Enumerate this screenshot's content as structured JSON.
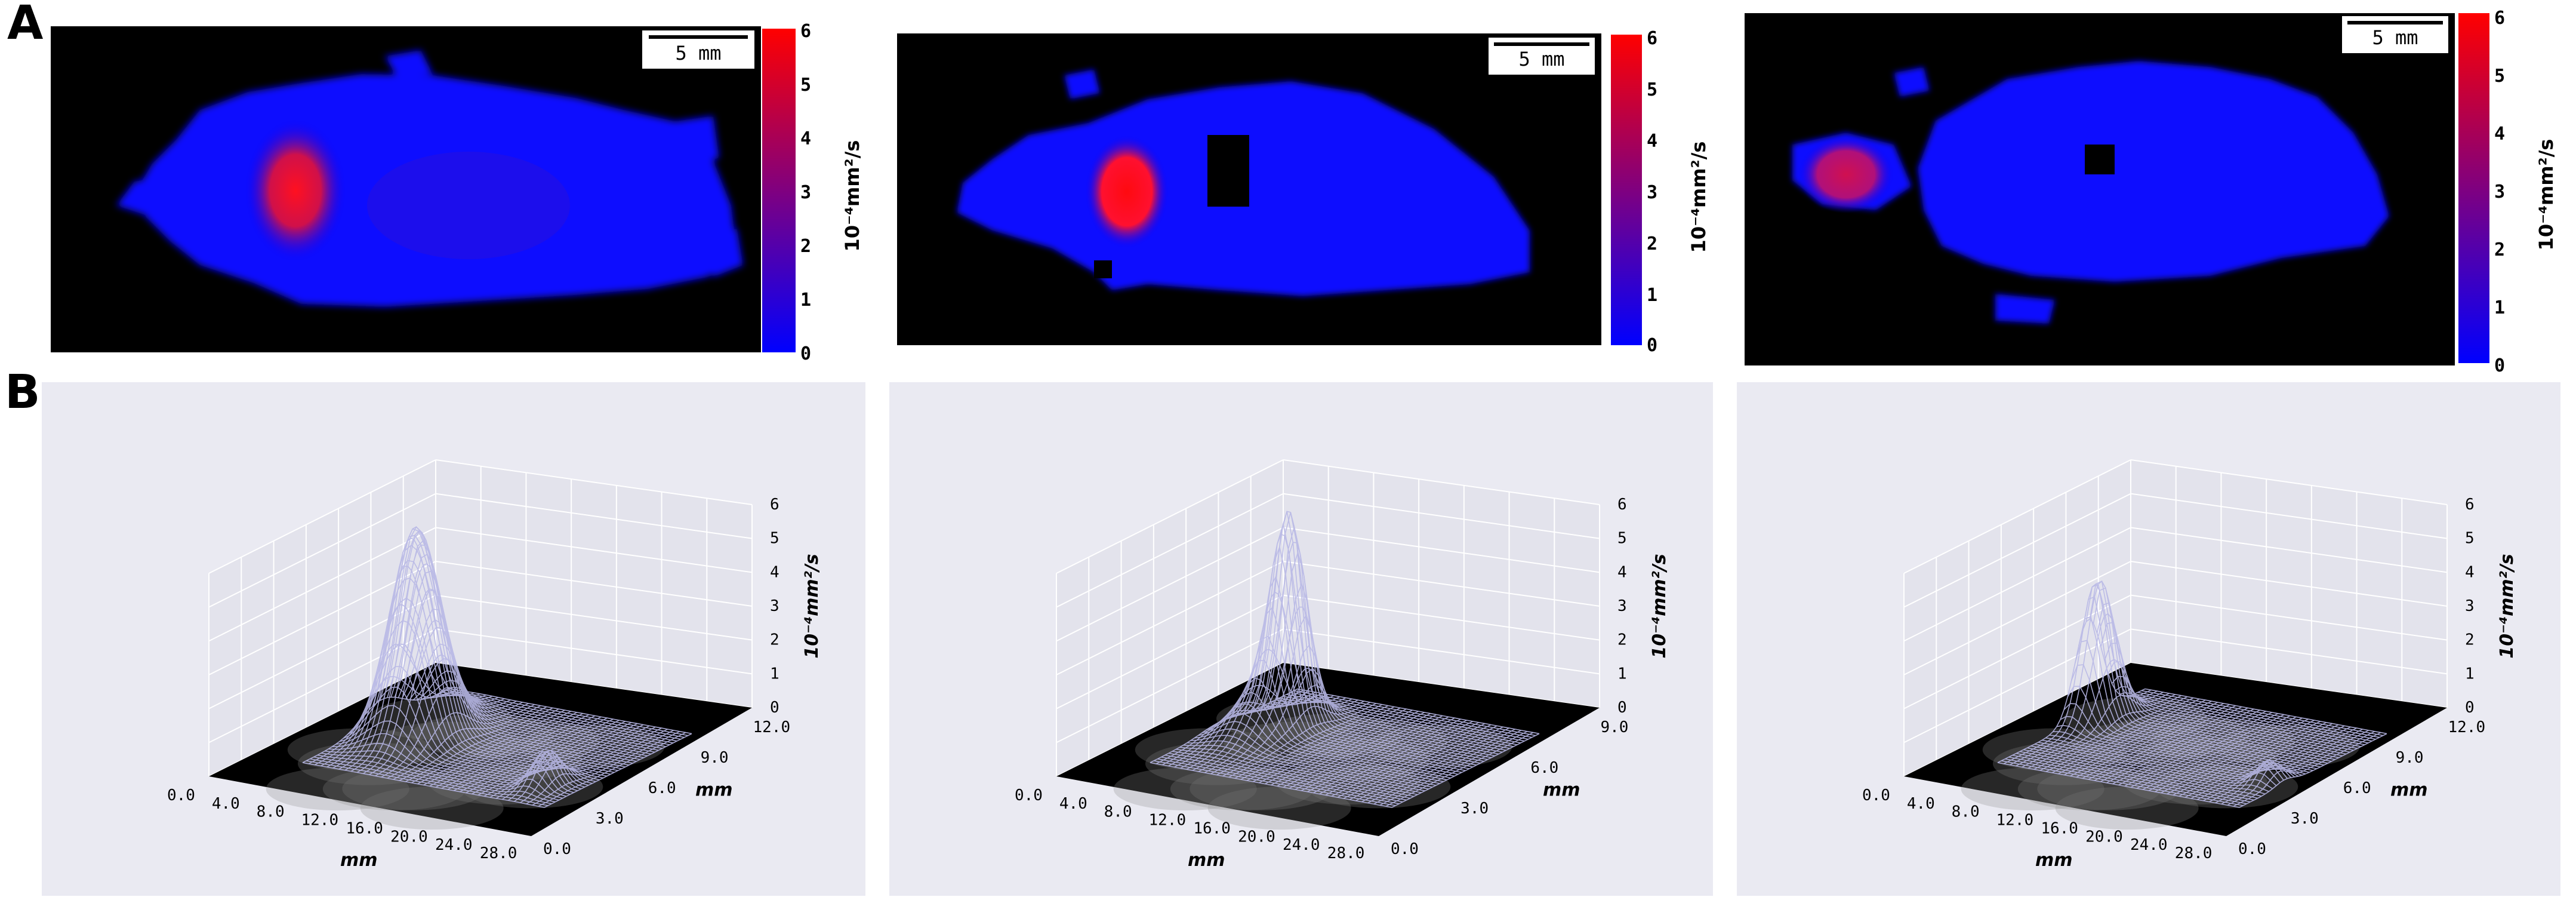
{
  "figure": {
    "panel_a_label": "A",
    "panel_b_label": "B"
  },
  "panel_a": {
    "scalebar_label": "5 mm",
    "colorbar_label": "10⁻⁴mm²/s",
    "colorbar_ticks": [
      "0",
      "1",
      "2",
      "3",
      "4",
      "5",
      "6"
    ],
    "colors": {
      "low": "#0000ff",
      "high": "#ff0000",
      "background": "#000000"
    },
    "maps": [
      {
        "name": "map-1"
      },
      {
        "name": "map-2"
      },
      {
        "name": "map-3"
      }
    ]
  },
  "panel_b": {
    "z_label": "10⁻⁴mm²/s",
    "z_ticks": [
      "0",
      "1",
      "2",
      "3",
      "4",
      "5",
      "6"
    ],
    "x_label": "mm",
    "y_label": "mm",
    "x_ticks": [
      "0.0",
      "4.0",
      "8.0",
      "12.0",
      "16.0",
      "20.0",
      "24.0",
      "28.0"
    ],
    "plots": [
      {
        "y_ticks": [
          "0.0",
          "3.0",
          "6.0",
          "9.0",
          "12.0"
        ]
      },
      {
        "y_ticks": [
          "0.0",
          "3.0",
          "6.0",
          "9.0"
        ]
      },
      {
        "y_ticks": [
          "0.0",
          "3.0",
          "6.0",
          "9.0",
          "12.0"
        ]
      }
    ],
    "colors": {
      "background": "#eaeaf2",
      "floor": "#000000",
      "surface": "#b8b8e6"
    }
  }
}
